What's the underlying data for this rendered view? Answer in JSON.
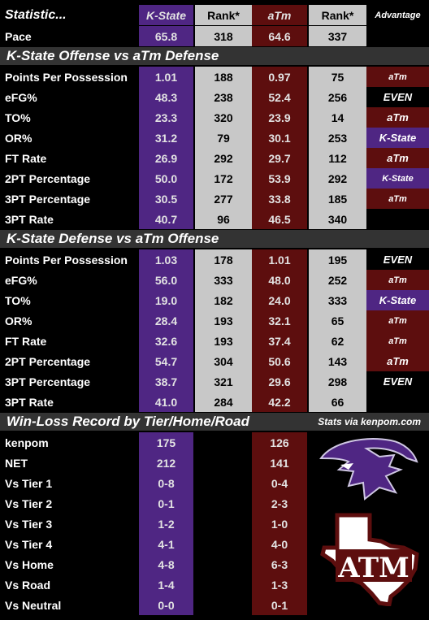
{
  "header": {
    "statistic": "Statistic...",
    "team1": "K-State",
    "rank1": "Rank*",
    "team2": "aTm",
    "rank2": "Rank*",
    "advantage": "Advantage"
  },
  "pace": {
    "label": "Pace",
    "ks": "65.8",
    "ksr": "318",
    "am": "64.6",
    "amr": "337"
  },
  "sections": [
    {
      "title": "K-State Offense vs aTm Defense",
      "rows": [
        {
          "label": "Points Per Possession",
          "ks": "1.01",
          "ksr": "188",
          "am": "0.97",
          "amr": "75",
          "adv": "aTm",
          "style": "maroon small"
        },
        {
          "label": "eFG%",
          "ks": "48.3",
          "ksr": "238",
          "am": "52.4",
          "amr": "256",
          "adv": "EVEN",
          "style": "none"
        },
        {
          "label": "TO%",
          "ks": "23.3",
          "ksr": "320",
          "am": "23.9",
          "amr": "14",
          "adv": "aTm",
          "style": "maroon"
        },
        {
          "label": "OR%",
          "ks": "31.2",
          "ksr": "79",
          "am": "30.1",
          "amr": "253",
          "adv": "K-State",
          "style": "purple"
        },
        {
          "label": "FT Rate",
          "ks": "26.9",
          "ksr": "292",
          "am": "29.7",
          "amr": "112",
          "adv": "aTm",
          "style": "maroon"
        },
        {
          "label": "2PT Percentage",
          "ks": "50.0",
          "ksr": "172",
          "am": "53.9",
          "amr": "292",
          "adv": "K-State",
          "style": "purple small"
        },
        {
          "label": "3PT Percentage",
          "ks": "30.5",
          "ksr": "277",
          "am": "33.8",
          "amr": "185",
          "adv": "aTm",
          "style": "maroon small"
        },
        {
          "label": "3PT Rate",
          "ks": "40.7",
          "ksr": "96",
          "am": "46.5",
          "amr": "340",
          "adv": "",
          "style": "none"
        }
      ]
    },
    {
      "title": "K-State Defense vs aTm Offense",
      "rows": [
        {
          "label": "Points Per Possession",
          "ks": "1.03",
          "ksr": "178",
          "am": "1.01",
          "amr": "195",
          "adv": "EVEN",
          "style": "none"
        },
        {
          "label": "eFG%",
          "ks": "56.0",
          "ksr": "333",
          "am": "48.0",
          "amr": "252",
          "adv": "aTm",
          "style": "maroon small"
        },
        {
          "label": "TO%",
          "ks": "19.0",
          "ksr": "182",
          "am": "24.0",
          "amr": "333",
          "adv": "K-State",
          "style": "purple"
        },
        {
          "label": "OR%",
          "ks": "28.4",
          "ksr": "193",
          "am": "32.1",
          "amr": "65",
          "adv": "aTm",
          "style": "maroon small"
        },
        {
          "label": "FT Rate",
          "ks": "32.6",
          "ksr": "193",
          "am": "37.4",
          "amr": "62",
          "adv": "aTm",
          "style": "maroon small"
        },
        {
          "label": "2PT Percentage",
          "ks": "54.7",
          "ksr": "304",
          "am": "50.6",
          "amr": "143",
          "adv": "aTm",
          "style": "maroon"
        },
        {
          "label": "3PT Percentage",
          "ks": "38.7",
          "ksr": "321",
          "am": "29.6",
          "amr": "298",
          "adv": "EVEN",
          "style": "none"
        },
        {
          "label": "3PT Rate",
          "ks": "41.0",
          "ksr": "284",
          "am": "42.2",
          "amr": "66",
          "adv": "",
          "style": "none"
        }
      ]
    }
  ],
  "record": {
    "title": "Win-Loss Record by Tier/Home/Road",
    "source": "Stats via kenpom.com",
    "rows": [
      {
        "label": "kenpom",
        "ks": "175",
        "am": "126"
      },
      {
        "label": "NET",
        "ks": "212",
        "am": "141"
      },
      {
        "label": "Vs Tier 1",
        "ks": "0-8",
        "am": "0-4"
      },
      {
        "label": "Vs Tier 2",
        "ks": "0-1",
        "am": "2-3"
      },
      {
        "label": "Vs Tier 3",
        "ks": "1-2",
        "am": "1-0"
      },
      {
        "label": "Vs Tier 4",
        "ks": "4-1",
        "am": "4-0"
      },
      {
        "label": "Vs Home",
        "ks": "4-8",
        "am": "6-3"
      },
      {
        "label": "Vs Road",
        "ks": "1-4",
        "am": "1-3"
      },
      {
        "label": "Vs Neutral",
        "ks": "0-0",
        "am": "0-1"
      }
    ]
  },
  "logos": {
    "atm_letters": "ATM"
  },
  "colors": {
    "kstate_purple": "#4f2683",
    "atm_maroon": "#5d0e0e",
    "rank_gray": "#c8c8c8",
    "section_gray": "#333333"
  }
}
